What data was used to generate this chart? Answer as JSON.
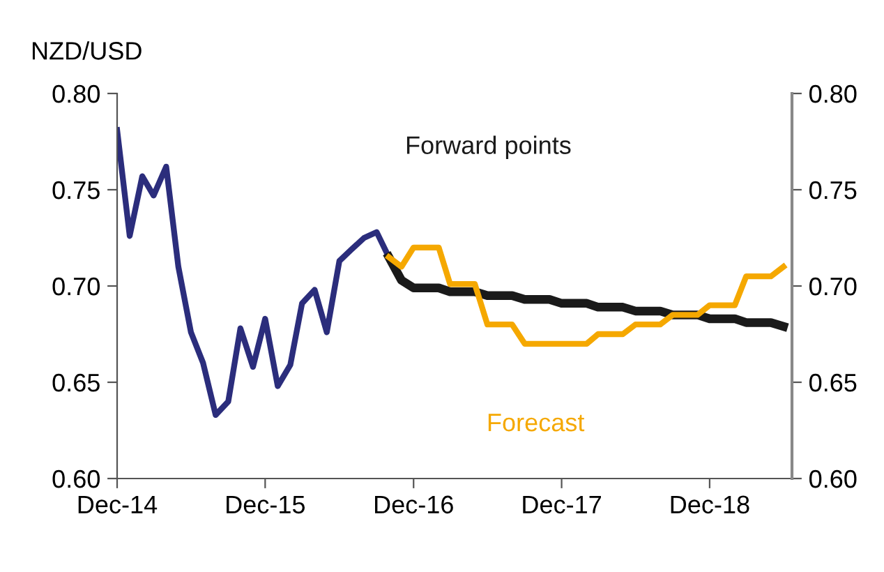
{
  "chart_data": {
    "type": "line",
    "ylabel": "NZD/USD",
    "series": [
      {
        "color": "#2b2d7c",
        "x": [
          "2014-12",
          "2015-01",
          "2015-02",
          "2015-03",
          "2015-04",
          "2015-05",
          "2015-06",
          "2015-07",
          "2015-08",
          "2015-09",
          "2015-10",
          "2015-11",
          "2015-12",
          "2016-01",
          "2016-02",
          "2016-03",
          "2016-04",
          "2016-05",
          "2016-06",
          "2016-07",
          "2016-08",
          "2016-09",
          "2016-10"
        ],
        "values": [
          0.781,
          0.726,
          0.757,
          0.747,
          0.762,
          0.71,
          0.676,
          0.66,
          0.633,
          0.64,
          0.678,
          0.658,
          0.683,
          0.648,
          0.659,
          0.691,
          0.698,
          0.676,
          0.713,
          0.719,
          0.725,
          0.728,
          0.715
        ]
      },
      {
        "name": "Forward points",
        "color": "#1a1a1a",
        "x": [
          "2016-10",
          "2016-11",
          "2016-12",
          "2017-01",
          "2017-02",
          "2017-03",
          "2017-04",
          "2017-05",
          "2017-06",
          "2017-07",
          "2017-08",
          "2017-09",
          "2017-10",
          "2017-11",
          "2017-12",
          "2018-01",
          "2018-02",
          "2018-03",
          "2018-04",
          "2018-05",
          "2018-06",
          "2018-07",
          "2018-08",
          "2018-09",
          "2018-10",
          "2018-11",
          "2018-12",
          "2019-01",
          "2019-02",
          "2019-03",
          "2019-04",
          "2019-05",
          "2019-06"
        ],
        "values": [
          0.715,
          0.703,
          0.699,
          0.699,
          0.699,
          0.697,
          0.697,
          0.697,
          0.695,
          0.695,
          0.695,
          0.693,
          0.693,
          0.693,
          0.691,
          0.691,
          0.691,
          0.689,
          0.689,
          0.689,
          0.687,
          0.687,
          0.687,
          0.685,
          0.685,
          0.685,
          0.683,
          0.683,
          0.683,
          0.681,
          0.681,
          0.681,
          0.679
        ]
      },
      {
        "name": "Forecast",
        "color": "#f5a800",
        "x": [
          "2016-10",
          "2016-11",
          "2016-12",
          "2017-01",
          "2017-02",
          "2017-03",
          "2017-04",
          "2017-05",
          "2017-06",
          "2017-07",
          "2017-08",
          "2017-09",
          "2017-10",
          "2017-11",
          "2017-12",
          "2018-01",
          "2018-02",
          "2018-03",
          "2018-04",
          "2018-05",
          "2018-06",
          "2018-07",
          "2018-08",
          "2018-09",
          "2018-10",
          "2018-11",
          "2018-12",
          "2019-01",
          "2019-02",
          "2019-03",
          "2019-04",
          "2019-05",
          "2019-06"
        ],
        "values": [
          0.715,
          0.71,
          0.72,
          0.72,
          0.72,
          0.701,
          0.701,
          0.701,
          0.68,
          0.68,
          0.68,
          0.67,
          0.67,
          0.67,
          0.67,
          0.67,
          0.67,
          0.675,
          0.675,
          0.675,
          0.68,
          0.68,
          0.68,
          0.685,
          0.685,
          0.685,
          0.69,
          0.69,
          0.69,
          0.705,
          0.705,
          0.705,
          0.71
        ]
      }
    ],
    "xlim": [
      "2014-12",
      "2019-06-22"
    ],
    "xticks": [
      {
        "value": "2014-12",
        "label": "Dec-14"
      },
      {
        "value": "2015-12",
        "label": "Dec-15"
      },
      {
        "value": "2016-12",
        "label": "Dec-16"
      },
      {
        "value": "2017-12",
        "label": "Dec-17"
      },
      {
        "value": "2018-12",
        "label": "Dec-18"
      }
    ],
    "ylim": [
      0.6,
      0.8
    ],
    "yticks": [
      {
        "value": 0.6,
        "label": "0.60"
      },
      {
        "value": 0.65,
        "label": "0.65"
      },
      {
        "value": 0.7,
        "label": "0.70"
      },
      {
        "value": 0.75,
        "label": "0.75"
      },
      {
        "value": 0.8,
        "label": "0.80"
      }
    ],
    "y2lim": [
      0.6,
      0.8
    ],
    "y2ticks": [
      {
        "value": 0.6,
        "label": "0.60"
      },
      {
        "value": 0.65,
        "label": "0.65"
      },
      {
        "value": 0.7,
        "label": "0.70"
      },
      {
        "value": 0.75,
        "label": "0.75"
      },
      {
        "value": 0.8,
        "label": "0.80"
      }
    ],
    "grid": false,
    "legend": false,
    "marker": "none",
    "line_style": "solid"
  }
}
